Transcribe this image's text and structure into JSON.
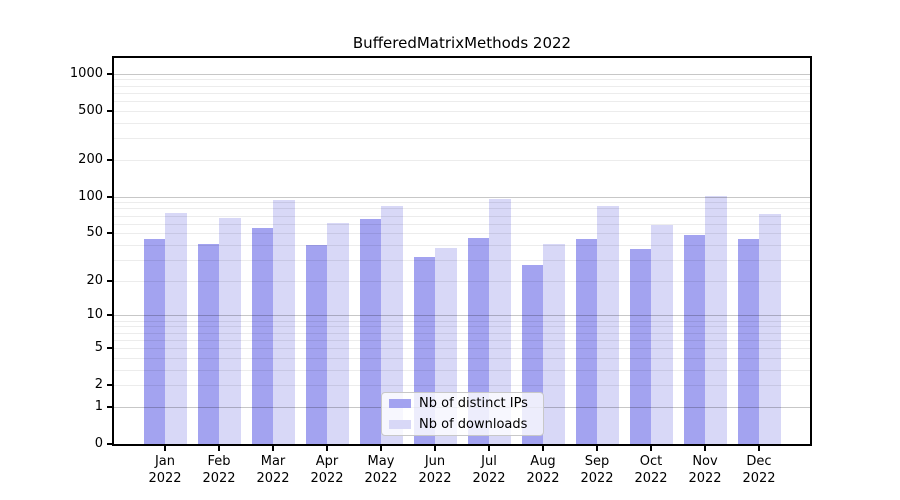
{
  "figure": {
    "background": "#ffffff"
  },
  "chart_data": {
    "type": "bar",
    "title": "BufferedMatrixMethods 2022",
    "categories": [
      "Jan",
      "Feb",
      "Mar",
      "Apr",
      "May",
      "Jun",
      "Jul",
      "Aug",
      "Sep",
      "Oct",
      "Nov",
      "Dec"
    ],
    "year_label": "2022",
    "series": [
      {
        "name": "Nb of distinct IPs",
        "color": "#a3a3f0",
        "values": [
          45,
          41,
          55,
          40,
          66,
          32,
          46,
          27,
          45,
          37,
          48,
          45
        ]
      },
      {
        "name": "Nb of downloads",
        "color": "#d8d8f7",
        "values": [
          73,
          67,
          93,
          61,
          83,
          38,
          95,
          41,
          84,
          59,
          101,
          72
        ]
      }
    ],
    "yscale": "log1p",
    "ylim": [
      0,
      1340
    ],
    "yticks": [
      0,
      1,
      2,
      5,
      10,
      20,
      50,
      100,
      200,
      500,
      1000
    ],
    "grid": "horizontal, major and minor",
    "legend_position": "lower center inside plot"
  }
}
